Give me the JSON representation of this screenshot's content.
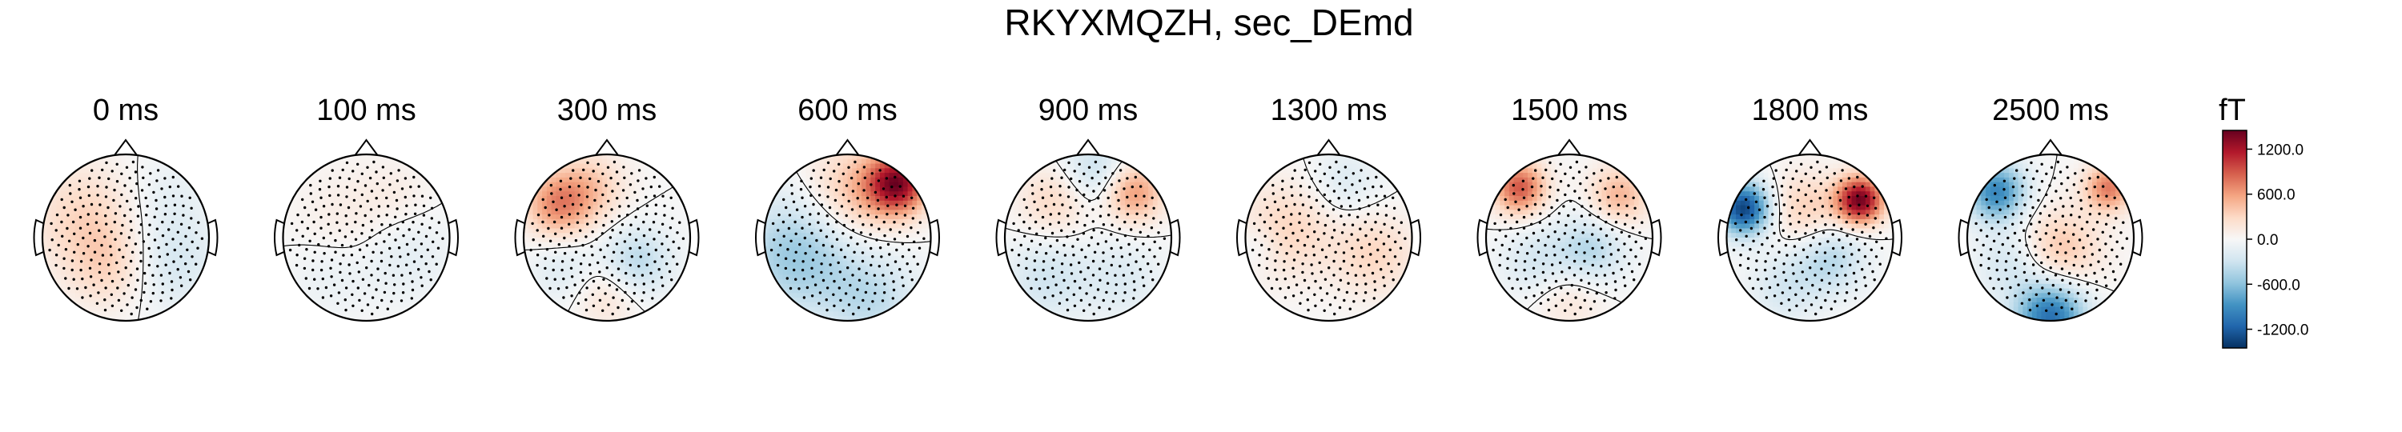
{
  "chart_data": {
    "type": "topomap",
    "title": "RKYXMQZH, sec_DEmd",
    "panels": [
      {
        "time_label": "0 ms",
        "blobs": [
          {
            "u": -0.5,
            "v": 0.25,
            "s": 0.45,
            "val": 300
          },
          {
            "u": -0.2,
            "v": -0.35,
            "s": 0.35,
            "val": 280
          },
          {
            "u": 0.55,
            "v": -0.3,
            "s": 0.4,
            "val": -250
          },
          {
            "u": 0.5,
            "v": 0.5,
            "s": 0.35,
            "val": -120
          }
        ]
      },
      {
        "time_label": "100 ms",
        "blobs": [
          {
            "u": -0.2,
            "v": 0.2,
            "s": 0.45,
            "val": 120
          },
          {
            "u": 0.45,
            "v": -0.2,
            "s": 0.4,
            "val": -160
          },
          {
            "u": -0.45,
            "v": -0.45,
            "s": 0.35,
            "val": -110
          },
          {
            "u": 0.4,
            "v": 0.5,
            "s": 0.3,
            "val": 90
          }
        ]
      },
      {
        "time_label": "300 ms",
        "blobs": [
          {
            "u": -0.6,
            "v": 0.4,
            "s": 0.28,
            "val": 650
          },
          {
            "u": -0.2,
            "v": 0.6,
            "s": 0.3,
            "val": 350
          },
          {
            "u": 0.35,
            "v": -0.3,
            "s": 0.3,
            "val": -420
          },
          {
            "u": 0.0,
            "v": -0.65,
            "s": 0.3,
            "val": 250
          },
          {
            "u": -0.5,
            "v": -0.4,
            "s": 0.3,
            "val": -200
          }
        ]
      },
      {
        "time_label": "600 ms",
        "blobs": [
          {
            "u": 0.6,
            "v": 0.65,
            "s": 0.25,
            "val": 1250
          },
          {
            "u": 0.1,
            "v": 0.55,
            "s": 0.4,
            "val": 450
          },
          {
            "u": -0.6,
            "v": -0.2,
            "s": 0.5,
            "val": -550
          },
          {
            "u": 0.3,
            "v": -0.75,
            "s": 0.4,
            "val": -350
          }
        ]
      },
      {
        "time_label": "900 ms",
        "blobs": [
          {
            "u": 0.55,
            "v": 0.55,
            "s": 0.25,
            "val": 650
          },
          {
            "u": -0.4,
            "v": 0.45,
            "s": 0.3,
            "val": 300
          },
          {
            "u": 0.1,
            "v": 0.8,
            "s": 0.3,
            "val": -350
          },
          {
            "u": -0.5,
            "v": -0.5,
            "s": 0.35,
            "val": -280
          },
          {
            "u": 0.4,
            "v": -0.5,
            "s": 0.35,
            "val": -200
          }
        ]
      },
      {
        "time_label": "1300 ms",
        "blobs": [
          {
            "u": -0.5,
            "v": 0.1,
            "s": 0.4,
            "val": 320
          },
          {
            "u": 0.55,
            "v": -0.2,
            "s": 0.35,
            "val": 300
          },
          {
            "u": 0.2,
            "v": 0.65,
            "s": 0.3,
            "val": -200
          },
          {
            "u": -0.85,
            "v": -0.1,
            "s": 0.2,
            "val": -150
          }
        ]
      },
      {
        "time_label": "1500 ms",
        "blobs": [
          {
            "u": -0.6,
            "v": 0.6,
            "s": 0.22,
            "val": 900
          },
          {
            "u": 0.6,
            "v": 0.5,
            "s": 0.25,
            "val": 500
          },
          {
            "u": 0.25,
            "v": -0.15,
            "s": 0.3,
            "val": -420
          },
          {
            "u": -0.4,
            "v": -0.3,
            "s": 0.3,
            "val": -250
          },
          {
            "u": 0.0,
            "v": -0.7,
            "s": 0.3,
            "val": 200
          }
        ]
      },
      {
        "time_label": "1800 ms",
        "blobs": [
          {
            "u": -0.8,
            "v": 0.35,
            "s": 0.22,
            "val": -1350
          },
          {
            "u": 0.6,
            "v": 0.45,
            "s": 0.2,
            "val": 1400
          },
          {
            "u": -0.05,
            "v": 0.35,
            "s": 0.3,
            "val": 350
          },
          {
            "u": 0.25,
            "v": -0.25,
            "s": 0.3,
            "val": -400
          },
          {
            "u": -0.3,
            "v": -0.6,
            "s": 0.3,
            "val": -250
          }
        ]
      },
      {
        "time_label": "2500 ms",
        "blobs": [
          {
            "u": -0.65,
            "v": 0.55,
            "s": 0.25,
            "val": -950
          },
          {
            "u": 0.7,
            "v": 0.6,
            "s": 0.2,
            "val": 750
          },
          {
            "u": 0.0,
            "v": -0.95,
            "s": 0.3,
            "val": -1100
          },
          {
            "u": 0.1,
            "v": -0.15,
            "s": 0.35,
            "val": 420
          },
          {
            "u": -0.45,
            "v": -0.3,
            "s": 0.3,
            "val": -300
          }
        ]
      }
    ],
    "colorbar": {
      "unit": "fT",
      "range": [
        -1450,
        1450
      ],
      "ticks": [
        1200.0,
        600.0,
        0.0,
        -600.0,
        -1200.0
      ],
      "tick_labels": [
        "1200.0",
        "600.0",
        "0.0",
        "-600.0",
        "-1200.0"
      ],
      "colormap": "RdBu_r"
    },
    "colors": {
      "negative_end": "#053061",
      "zero": "#f7f7f7",
      "positive_end": "#67001f"
    }
  }
}
